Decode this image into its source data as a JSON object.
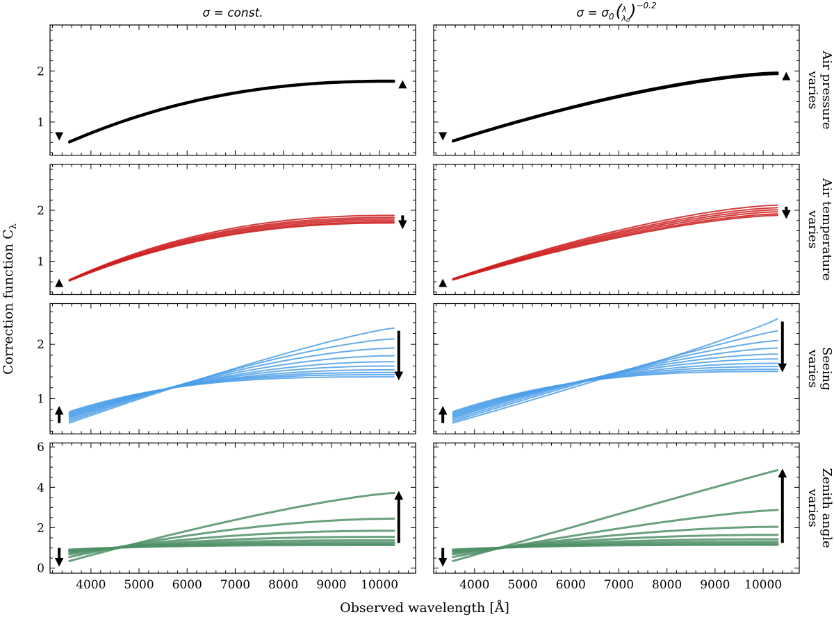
{
  "chart_data": {
    "type": "line",
    "xlabel": "Observed wavelength [Å]",
    "ylabel": "Correction function C",
    "ylabel_subscript": "λ",
    "xlim": [
      3150,
      10750
    ],
    "x_start": 3550,
    "x_end": 10300,
    "x_ticks": [
      4000,
      5000,
      6000,
      7000,
      8000,
      9000,
      10000
    ],
    "columns": [
      {
        "title_prefix": "σ = ",
        "title_text": "const."
      },
      {
        "title_prefix": "σ = σ",
        "title_sub": "0",
        "title_frac_num": "λ",
        "title_frac_den": "λ",
        "title_frac_den_sub": "0",
        "title_exp": "−0.2"
      }
    ],
    "rows": [
      {
        "label_lines": [
          "Air pressure",
          "varies"
        ],
        "color": "#000000",
        "ylim": [
          0.35,
          2.9
        ],
        "yticks": [
          1,
          2
        ],
        "panels": [
          {
            "series": [
              {
                "name": "p1",
                "start": 0.6,
                "end": 1.79,
                "shape": 2.3
              },
              {
                "name": "p2",
                "start": 0.62,
                "end": 1.81,
                "shape": 2.3
              },
              {
                "name": "p3",
                "start": 0.61,
                "end": 1.8,
                "shape": 2.3
              }
            ],
            "markers": [
              {
                "x": 3340,
                "y": 0.72,
                "dir": "down"
              },
              {
                "x": 10480,
                "y": 1.74,
                "dir": "up"
              }
            ]
          },
          {
            "series": [
              {
                "name": "p1",
                "start": 0.62,
                "end": 1.94,
                "shape": 1.5
              },
              {
                "name": "p2",
                "start": 0.64,
                "end": 1.97,
                "shape": 1.5
              },
              {
                "name": "p3",
                "start": 0.63,
                "end": 1.955,
                "shape": 1.5
              }
            ],
            "markers": [
              {
                "x": 3340,
                "y": 0.72,
                "dir": "down"
              },
              {
                "x": 10480,
                "y": 1.9,
                "dir": "up"
              }
            ]
          }
        ]
      },
      {
        "label_lines": [
          "Air temperature",
          "varies"
        ],
        "color": "#cc1b1b",
        "ylim": [
          0.35,
          2.9
        ],
        "yticks": [
          1,
          2
        ],
        "panels": [
          {
            "series": [
              {
                "name": "t1",
                "start": 0.64,
                "end": 1.9,
                "shape": 2.3
              },
              {
                "name": "t2",
                "start": 0.635,
                "end": 1.86,
                "shape": 2.3
              },
              {
                "name": "t3",
                "start": 0.63,
                "end": 1.83,
                "shape": 2.3
              },
              {
                "name": "t4",
                "start": 0.625,
                "end": 1.8,
                "shape": 2.3
              },
              {
                "name": "t5",
                "start": 0.62,
                "end": 1.77,
                "shape": 2.3
              },
              {
                "name": "t6",
                "start": 0.615,
                "end": 1.75,
                "shape": 2.3
              }
            ],
            "markers": [
              {
                "x": 3340,
                "y": 0.58,
                "dir": "up"
              }
            ],
            "arrows": [
              {
                "x": 10480,
                "y_from": 1.9,
                "y_to": 1.7
              }
            ]
          },
          {
            "series": [
              {
                "name": "t1",
                "start": 0.66,
                "end": 2.1,
                "shape": 1.5
              },
              {
                "name": "t2",
                "start": 0.655,
                "end": 2.05,
                "shape": 1.5
              },
              {
                "name": "t3",
                "start": 0.65,
                "end": 2.01,
                "shape": 1.5
              },
              {
                "name": "t4",
                "start": 0.645,
                "end": 1.97,
                "shape": 1.5
              },
              {
                "name": "t5",
                "start": 0.64,
                "end": 1.93,
                "shape": 1.5
              },
              {
                "name": "t6",
                "start": 0.635,
                "end": 1.9,
                "shape": 1.5
              }
            ],
            "markers": [
              {
                "x": 3340,
                "y": 0.58,
                "dir": "up"
              }
            ],
            "arrows": [
              {
                "x": 10480,
                "y_from": 2.07,
                "y_to": 1.9
              }
            ]
          }
        ]
      },
      {
        "label_lines": [
          "Seeing",
          "varies"
        ],
        "color": "#4a9ee8",
        "ylim": [
          0.35,
          2.75
        ],
        "yticks": [
          1,
          2
        ],
        "panels": [
          {
            "series": [
              {
                "name": "s1",
                "start": 0.55,
                "end": 2.3,
                "shape": 1.2
              },
              {
                "name": "s2",
                "start": 0.58,
                "end": 2.1,
                "shape": 1.4
              },
              {
                "name": "s3",
                "start": 0.61,
                "end": 1.93,
                "shape": 1.6
              },
              {
                "name": "s4",
                "start": 0.64,
                "end": 1.79,
                "shape": 1.8
              },
              {
                "name": "s5",
                "start": 0.66,
                "end": 1.68,
                "shape": 2.0
              },
              {
                "name": "s6",
                "start": 0.68,
                "end": 1.6,
                "shape": 2.2
              },
              {
                "name": "s7",
                "start": 0.7,
                "end": 1.53,
                "shape": 2.4
              },
              {
                "name": "s8",
                "start": 0.72,
                "end": 1.48,
                "shape": 2.6
              },
              {
                "name": "s9",
                "start": 0.74,
                "end": 1.44,
                "shape": 2.8
              },
              {
                "name": "s10",
                "start": 0.76,
                "end": 1.4,
                "shape": 3.0
              }
            ],
            "markers": [],
            "arrows": [
              {
                "x": 3340,
                "y_from": 0.55,
                "y_to": 0.8
              },
              {
                "x": 10400,
                "y_from": 2.25,
                "y_to": 1.4
              }
            ]
          },
          {
            "series": [
              {
                "name": "s1",
                "start": 0.55,
                "end": 2.47,
                "shape": 0.9
              },
              {
                "name": "s2",
                "start": 0.58,
                "end": 2.25,
                "shape": 1.1
              },
              {
                "name": "s3",
                "start": 0.61,
                "end": 2.07,
                "shape": 1.3
              },
              {
                "name": "s4",
                "start": 0.64,
                "end": 1.93,
                "shape": 1.5
              },
              {
                "name": "s5",
                "start": 0.66,
                "end": 1.82,
                "shape": 1.7
              },
              {
                "name": "s6",
                "start": 0.68,
                "end": 1.73,
                "shape": 1.9
              },
              {
                "name": "s7",
                "start": 0.7,
                "end": 1.65,
                "shape": 2.1
              },
              {
                "name": "s8",
                "start": 0.72,
                "end": 1.59,
                "shape": 2.3
              },
              {
                "name": "s9",
                "start": 0.74,
                "end": 1.54,
                "shape": 2.5
              },
              {
                "name": "s10",
                "start": 0.76,
                "end": 1.5,
                "shape": 2.7
              }
            ],
            "markers": [],
            "arrows": [
              {
                "x": 3340,
                "y_from": 0.55,
                "y_to": 0.8
              },
              {
                "x": 10400,
                "y_from": 2.42,
                "y_to": 1.55
              }
            ]
          }
        ]
      },
      {
        "label_lines": [
          "Zenith angle",
          "varies"
        ],
        "color": "#4f8f66",
        "ylim": [
          -0.25,
          6.2
        ],
        "yticks": [
          0,
          2,
          4,
          6
        ],
        "panels": [
          {
            "series": [
              {
                "name": "z1",
                "start": 0.35,
                "end": 3.72,
                "shape": 1.3
              },
              {
                "name": "z2",
                "start": 0.55,
                "end": 2.45,
                "shape": 1.8
              },
              {
                "name": "z3",
                "start": 0.68,
                "end": 1.85,
                "shape": 2.2
              },
              {
                "name": "z4",
                "start": 0.76,
                "end": 1.55,
                "shape": 2.5
              },
              {
                "name": "z5",
                "start": 0.82,
                "end": 1.38,
                "shape": 2.8
              },
              {
                "name": "z6",
                "start": 0.86,
                "end": 1.27,
                "shape": 3.0
              },
              {
                "name": "z7",
                "start": 0.89,
                "end": 1.2,
                "shape": 3.2
              },
              {
                "name": "z8",
                "start": 0.92,
                "end": 1.14,
                "shape": 3.4
              }
            ],
            "markers": [],
            "arrows": [
              {
                "x": 3340,
                "y_from": 1.0,
                "y_to": 0.25
              },
              {
                "x": 10400,
                "y_from": 1.25,
                "y_to": 3.65
              }
            ]
          },
          {
            "series": [
              {
                "name": "z1",
                "start": 0.35,
                "end": 4.85,
                "shape": 1.02
              },
              {
                "name": "z2",
                "start": 0.55,
                "end": 2.88,
                "shape": 1.3
              },
              {
                "name": "z3",
                "start": 0.68,
                "end": 2.05,
                "shape": 1.7
              },
              {
                "name": "z4",
                "start": 0.76,
                "end": 1.65,
                "shape": 2.1
              },
              {
                "name": "z5",
                "start": 0.82,
                "end": 1.43,
                "shape": 2.4
              },
              {
                "name": "z6",
                "start": 0.86,
                "end": 1.3,
                "shape": 2.7
              },
              {
                "name": "z7",
                "start": 0.89,
                "end": 1.21,
                "shape": 3.0
              },
              {
                "name": "z8",
                "start": 0.92,
                "end": 1.15,
                "shape": 3.3
              }
            ],
            "markers": [],
            "arrows": [
              {
                "x": 3340,
                "y_from": 1.0,
                "y_to": 0.25
              },
              {
                "x": 10400,
                "y_from": 1.25,
                "y_to": 4.75
              }
            ]
          }
        ]
      }
    ]
  }
}
